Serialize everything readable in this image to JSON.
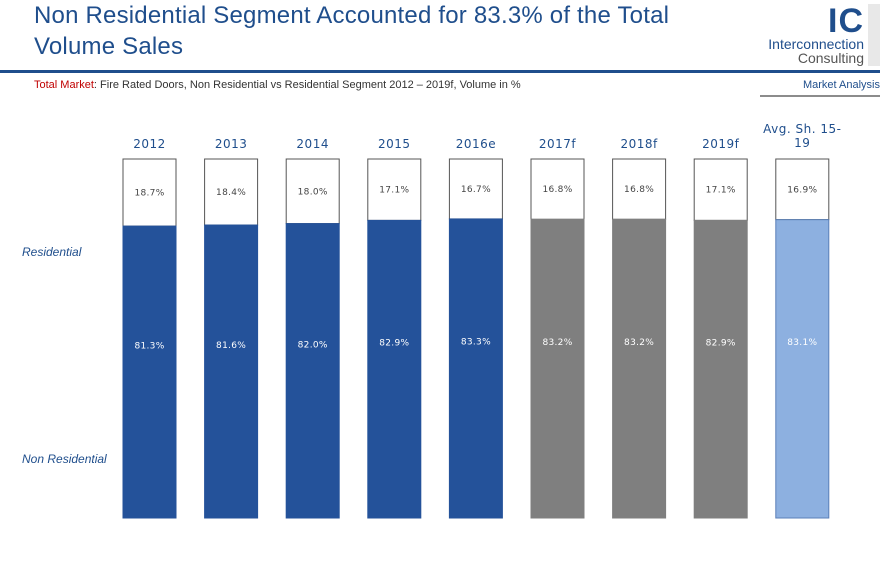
{
  "header": {
    "title": "Non Residential Segment Accounted for 83.3% of the Total Volume Sales",
    "subtitle_prefix": "Total Market",
    "subtitle_rest": ": Fire Rated Doors, Non Residential vs Residential Segment 2012 – 2019f, Volume in %",
    "tag": "Market Analysis"
  },
  "logo": {
    "mark": "IC",
    "line1": "Interconnection",
    "line2": "Consulting"
  },
  "row_labels": {
    "residential": "Residential",
    "non_residential": "Non Residential"
  },
  "chart_data": {
    "type": "bar",
    "stacked": true,
    "ylim": [
      0,
      100
    ],
    "categories": [
      "2012",
      "2013",
      "2014",
      "2015",
      "2016e",
      "2017f",
      "2018f",
      "2019f",
      "Avg. Sh. 15-19"
    ],
    "series": [
      {
        "name": "Non Residential",
        "values": [
          81.3,
          81.6,
          82.0,
          82.9,
          83.3,
          83.2,
          83.2,
          82.9,
          83.1
        ],
        "labels": [
          "81.3%",
          "81.6%",
          "82.0%",
          "82.9%",
          "83.3%",
          "83.2%",
          "83.2%",
          "82.9%",
          "83.1%"
        ]
      },
      {
        "name": "Residential",
        "values": [
          18.7,
          18.4,
          18.0,
          17.1,
          16.7,
          16.8,
          16.8,
          17.1,
          16.9
        ],
        "labels": [
          "18.7%",
          "18.4%",
          "18.0%",
          "17.1%",
          "16.7%",
          "16.8%",
          "16.8%",
          "17.1%",
          "16.9%"
        ]
      }
    ],
    "bar_colors": [
      "#24529a",
      "#24529a",
      "#24529a",
      "#24529a",
      "#24529a",
      "#7f7f7f",
      "#7f7f7f",
      "#7f7f7f",
      "#8db0e0"
    ],
    "top_fill": "#ffffff",
    "grid": false,
    "legend": "none"
  }
}
